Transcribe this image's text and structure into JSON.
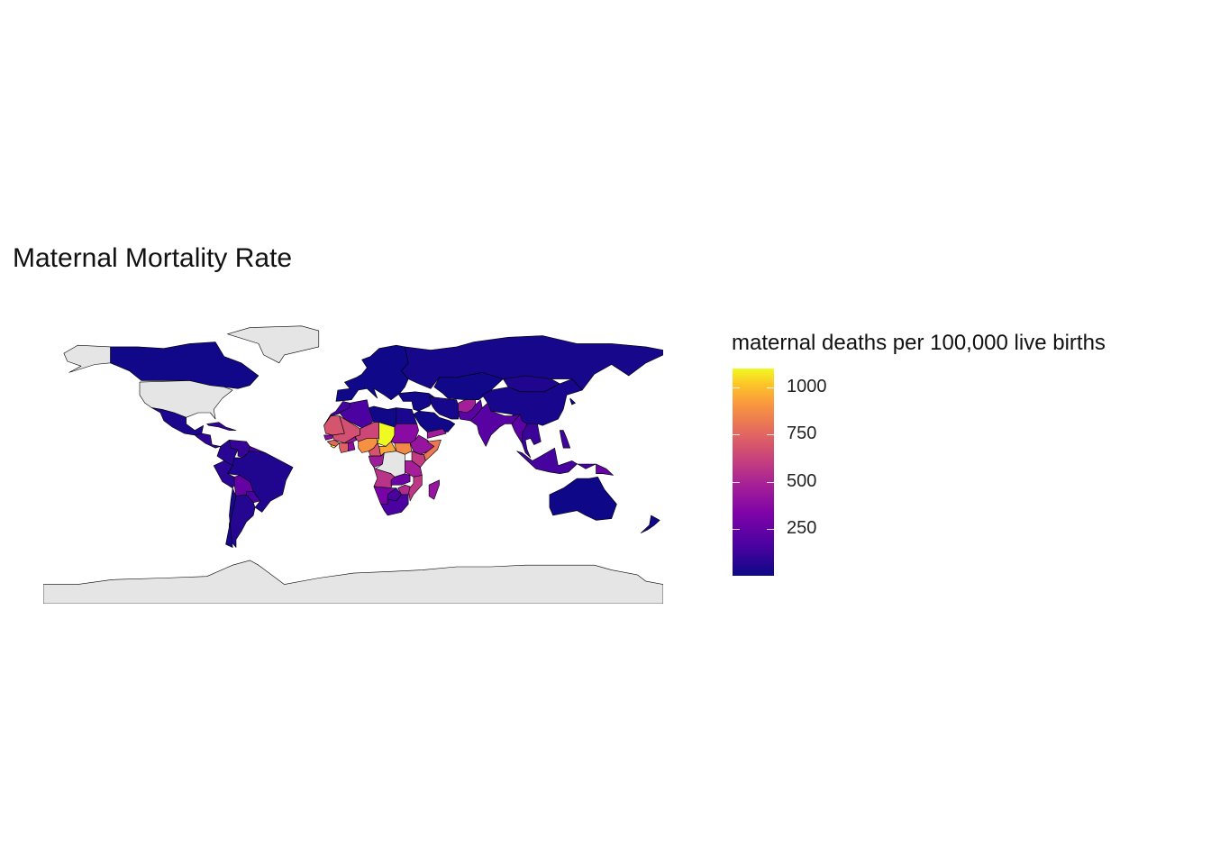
{
  "title": "Maternal Mortality Rate",
  "legend": {
    "title": "maternal deaths per 100,000 live births",
    "ticks": [
      {
        "label": "1000",
        "value": 1000
      },
      {
        "label": "750",
        "value": 750
      },
      {
        "label": "500",
        "value": 500
      },
      {
        "label": "250",
        "value": 250
      }
    ],
    "range": [
      3,
      1100
    ],
    "palette": "plasma",
    "colors": [
      "#0d0887",
      "#4c02a1",
      "#7e03a8",
      "#a92395",
      "#cc4778",
      "#e56b5d",
      "#f89441",
      "#fdc328",
      "#f0f921"
    ],
    "na_color": "#e5e5e5"
  },
  "map": {
    "projection": "equirectangular",
    "lon_range": [
      -180,
      180
    ],
    "lat_range": [
      -90,
      84
    ],
    "border_color": "#000000",
    "regions": [
      {
        "name": "Canada",
        "value": 10
      },
      {
        "name": "United States",
        "value": null
      },
      {
        "name": "Greenland",
        "value": null
      },
      {
        "name": "Alaska",
        "value": null
      },
      {
        "name": "Mexico",
        "value": 38
      },
      {
        "name": "Central America",
        "value": 80
      },
      {
        "name": "Caribbean",
        "value": 90
      },
      {
        "name": "Colombia",
        "value": 64
      },
      {
        "name": "Venezuela",
        "value": 95
      },
      {
        "name": "Guianas",
        "value": 130
      },
      {
        "name": "Brazil",
        "value": 44
      },
      {
        "name": "Peru",
        "value": 68
      },
      {
        "name": "Bolivia",
        "value": 206
      },
      {
        "name": "Paraguay",
        "value": 132
      },
      {
        "name": "Argentina",
        "value": 52
      },
      {
        "name": "Chile",
        "value": 22
      },
      {
        "name": "Europe",
        "value": 8
      },
      {
        "name": "Russia",
        "value": 25
      },
      {
        "name": "Kazakhstan & Central Asia",
        "value": 12
      },
      {
        "name": "Mongolia",
        "value": 44
      },
      {
        "name": "China",
        "value": 27
      },
      {
        "name": "Japan & Korea",
        "value": 5
      },
      {
        "name": "Turkey & Middle East",
        "value": 17
      },
      {
        "name": "Iran",
        "value": 25
      },
      {
        "name": "Saudi Arabia",
        "value": 12
      },
      {
        "name": "Yemen",
        "value": 385
      },
      {
        "name": "Afghanistan",
        "value": 396
      },
      {
        "name": "Pakistan",
        "value": 178
      },
      {
        "name": "India",
        "value": 174
      },
      {
        "name": "Southeast Asia",
        "value": 100
      },
      {
        "name": "Myanmar",
        "value": 178
      },
      {
        "name": "Indonesia",
        "value": 126
      },
      {
        "name": "Papua New Guinea",
        "value": 215
      },
      {
        "name": "Philippines",
        "value": 114
      },
      {
        "name": "Australia",
        "value": 6
      },
      {
        "name": "New Zealand",
        "value": 11
      },
      {
        "name": "Morocco",
        "value": 121
      },
      {
        "name": "Algeria",
        "value": 140
      },
      {
        "name": "Libya",
        "value": 9
      },
      {
        "name": "Egypt",
        "value": 33
      },
      {
        "name": "Mauritania",
        "value": 602
      },
      {
        "name": "Mali",
        "value": 587
      },
      {
        "name": "Niger",
        "value": 553
      },
      {
        "name": "Chad",
        "value": 1100
      },
      {
        "name": "Sudan",
        "value": 311
      },
      {
        "name": "South Sudan",
        "value": 789
      },
      {
        "name": "Senegal",
        "value": 315
      },
      {
        "name": "Guinea",
        "value": 679
      },
      {
        "name": "Sierra Leone",
        "value": 1360
      },
      {
        "name": "Cote d'Ivoire",
        "value": 645
      },
      {
        "name": "Ghana",
        "value": 319
      },
      {
        "name": "Burkina Faso",
        "value": 371
      },
      {
        "name": "Nigeria",
        "value": 814
      },
      {
        "name": "Cameroon",
        "value": 596
      },
      {
        "name": "Central African Republic",
        "value": 882
      },
      {
        "name": "Ethiopia",
        "value": 353
      },
      {
        "name": "Somalia",
        "value": 732
      },
      {
        "name": "Kenya",
        "value": 510
      },
      {
        "name": "Gabon & Congo",
        "value": 380
      },
      {
        "name": "DR Congo",
        "value": null
      },
      {
        "name": "Tanzania",
        "value": 398
      },
      {
        "name": "Angola",
        "value": 477
      },
      {
        "name": "Zambia",
        "value": 224
      },
      {
        "name": "Mozambique",
        "value": 489
      },
      {
        "name": "Zimbabwe",
        "value": 443
      },
      {
        "name": "Namibia",
        "value": 265
      },
      {
        "name": "Botswana",
        "value": 129
      },
      {
        "name": "South Africa",
        "value": 138
      },
      {
        "name": "Madagascar",
        "value": 353
      },
      {
        "name": "Antarctica",
        "value": null
      }
    ]
  }
}
